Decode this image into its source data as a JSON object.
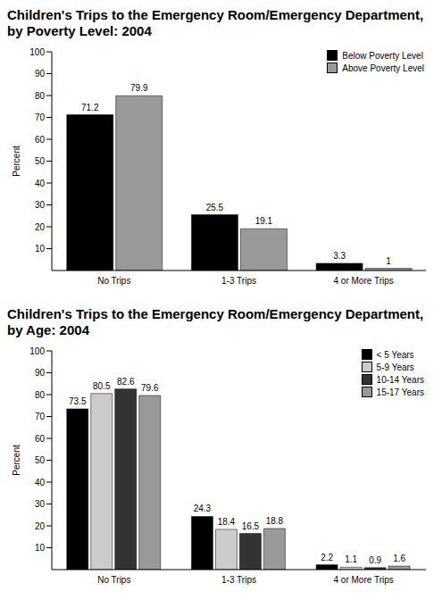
{
  "chart_data": [
    {
      "type": "bar",
      "title": "Children's Trips to the Emergency Room/Emergency Department, by Poverty Level: 2004",
      "ylabel": "Percent",
      "categories": [
        "No Trips",
        "1-3 Trips",
        "4 or More Trips"
      ],
      "series": [
        {
          "name": "Below Poverty Level",
          "color": "#000000",
          "values": [
            71.2,
            25.5,
            3.3
          ]
        },
        {
          "name": "Above Poverty Level",
          "color": "#999999",
          "values": [
            79.9,
            19.1,
            1.0
          ]
        }
      ],
      "ylim": [
        0,
        100
      ],
      "yticks": [
        10,
        20,
        30,
        40,
        50,
        60,
        70,
        80,
        90,
        100
      ],
      "grid": false,
      "legend": "upper right",
      "data_labels": true
    },
    {
      "type": "bar",
      "title": "Children's Trips to the Emergency Room/Emergency Department, by Age: 2004",
      "ylabel": "Percent",
      "categories": [
        "No Trips",
        "1-3 Trips",
        "4 or More Trips"
      ],
      "series": [
        {
          "name": "< 5 Years",
          "color": "#000000",
          "values": [
            73.5,
            24.3,
            2.2
          ]
        },
        {
          "name": "5-9 Years",
          "color": "#cccccc",
          "values": [
            80.5,
            18.4,
            1.1
          ]
        },
        {
          "name": "10-14 Years",
          "color": "#333333",
          "values": [
            82.6,
            16.5,
            0.9
          ]
        },
        {
          "name": "15-17 Years",
          "color": "#999999",
          "values": [
            79.6,
            18.8,
            1.6
          ]
        }
      ],
      "ylim": [
        0,
        100
      ],
      "yticks": [
        10,
        20,
        30,
        40,
        50,
        60,
        70,
        80,
        90,
        100
      ],
      "grid": false,
      "legend": "upper right",
      "data_labels": true
    }
  ]
}
